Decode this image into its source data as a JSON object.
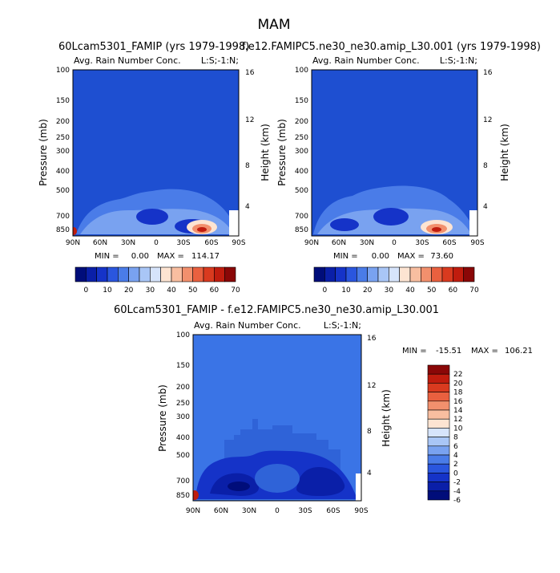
{
  "figure_title": "MAM",
  "colors": {
    "base_field": "#1e4fd1",
    "diff_field": "#3a74e6",
    "scale": [
      "#000d7a",
      "#0a1fa8",
      "#1533c8",
      "#2a56de",
      "#4a7ce8",
      "#79a2f0",
      "#a9c6f6",
      "#d6e4fb",
      "#fde4d2",
      "#f8bea0",
      "#f2906d",
      "#e9603f",
      "#d93a1f",
      "#c01c0e",
      "#8a0707"
    ]
  },
  "chart_data": [
    {
      "type": "heatmap",
      "title": "60Lcam5301_FAMIP (yrs 1979-1998)",
      "variable": "Avg. Rain Number Conc.",
      "corner_label": "L:S;-1:N;",
      "ylabel": "Pressure (mb)",
      "y2label": "Height (km)",
      "xticks": [
        "90N",
        "60N",
        "30N",
        "0",
        "30S",
        "60S",
        "90S"
      ],
      "yticks": [
        "100",
        "150",
        "200",
        "250",
        "300",
        "400",
        "500",
        "700",
        "850"
      ],
      "y2ticks": [
        "16",
        "12",
        "8",
        "4"
      ],
      "stats": {
        "min_label": "MIN =",
        "min": "0.00",
        "max_label": "MAX =",
        "max": "114.17"
      },
      "colorbar": {
        "orientation": "horizontal",
        "labels": [
          "0",
          "10",
          "20",
          "30",
          "40",
          "50",
          "60",
          "70"
        ]
      },
      "features": [
        {
          "name": "southern midlatitude maximum",
          "lat": -45,
          "pressure": 850,
          "value": 114.17
        },
        {
          "name": "north pole surface maximum",
          "lat": 88,
          "pressure": 850,
          "value": 70
        }
      ]
    },
    {
      "type": "heatmap",
      "title": "f.e12.FAMIPC5.ne30_ne30.amip_L30.001 (yrs 1979-1998)",
      "variable": "Avg. Rain Number Conc.",
      "corner_label": "L:S;-1:N;",
      "ylabel": "Pressure (mb)",
      "y2label": "Height (km)",
      "xticks": [
        "90N",
        "60N",
        "30N",
        "0",
        "30S",
        "60S",
        "90S"
      ],
      "yticks": [
        "100",
        "150",
        "200",
        "250",
        "300",
        "400",
        "500",
        "700",
        "850"
      ],
      "y2ticks": [
        "16",
        "12",
        "8",
        "4"
      ],
      "stats": {
        "min_label": "MIN =",
        "min": "0.00",
        "max_label": "MAX =",
        "max": "73.60"
      },
      "colorbar": {
        "orientation": "horizontal",
        "labels": [
          "0",
          "10",
          "20",
          "30",
          "40",
          "50",
          "60",
          "70"
        ]
      },
      "features": [
        {
          "name": "southern midlatitude maximum",
          "lat": -45,
          "pressure": 850,
          "value": 73.6
        }
      ]
    },
    {
      "type": "heatmap",
      "title": "60Lcam5301_FAMIP - f.e12.FAMIPC5.ne30_ne30.amip_L30.001",
      "variable": "Avg. Rain Number Conc.",
      "corner_label": "L:S;-1:N;",
      "ylabel": "Pressure (mb)",
      "y2label": "Height (km)",
      "xticks": [
        "90N",
        "60N",
        "30N",
        "0",
        "30S",
        "60S",
        "90S"
      ],
      "yticks": [
        "100",
        "150",
        "200",
        "250",
        "300",
        "400",
        "500",
        "700",
        "850"
      ],
      "y2ticks": [
        "16",
        "12",
        "8",
        "4"
      ],
      "stats": {
        "min_label": "MIN =",
        "min": "-15.51",
        "max_label": "MAX =",
        "max": "106.21"
      },
      "colorbar": {
        "orientation": "vertical",
        "labels": [
          "22",
          "20",
          "18",
          "16",
          "14",
          "12",
          "10",
          "8",
          "6",
          "4",
          "2",
          "0",
          "-2",
          "-4",
          "-6"
        ]
      },
      "features": [
        {
          "name": "negative difference band",
          "lat_range": [
            -80,
            75
          ],
          "pressure_range": [
            500,
            850
          ],
          "value": -6
        },
        {
          "name": "north pole surface maximum",
          "lat": 88,
          "pressure": 850,
          "value": 106.21
        }
      ]
    }
  ]
}
